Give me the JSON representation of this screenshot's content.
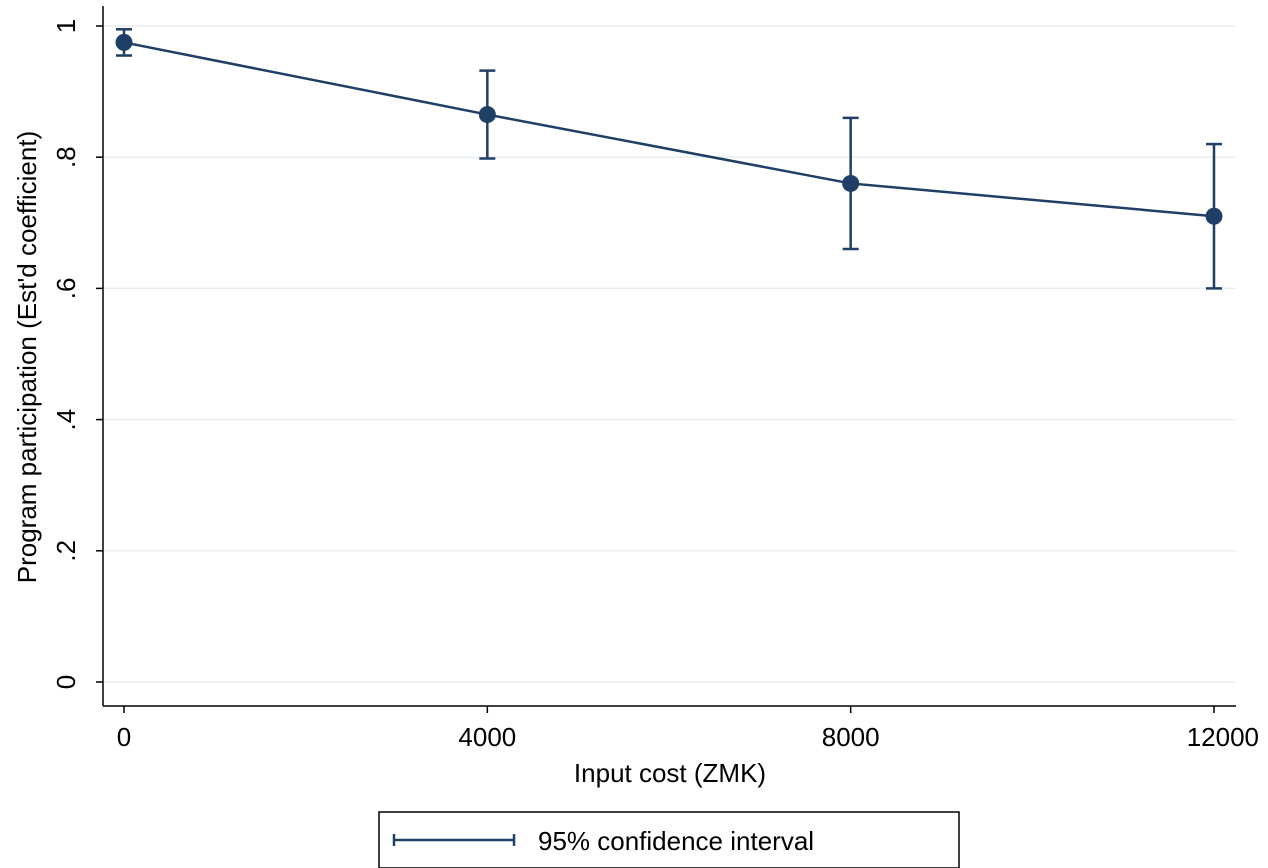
{
  "chart_data": {
    "type": "scatter",
    "xlabel": "Input cost (ZMK)",
    "ylabel": "Program participation (Est'd coefficient)",
    "xlim": [
      0,
      12000
    ],
    "ylim": [
      0,
      1
    ],
    "x_ticks": [
      {
        "value": 0,
        "label": "0"
      },
      {
        "value": 4000,
        "label": "4000"
      },
      {
        "value": 8000,
        "label": "8000"
      },
      {
        "value": 12000,
        "label": "12000"
      }
    ],
    "y_ticks": [
      {
        "value": 0,
        "label": "0"
      },
      {
        "value": 0.2,
        "label": ".2"
      },
      {
        "value": 0.4,
        "label": ".4"
      },
      {
        "value": 0.6,
        "label": ".6"
      },
      {
        "value": 0.8,
        "label": ".8"
      },
      {
        "value": 1,
        "label": "1"
      }
    ],
    "grid": "horizontal",
    "series": [
      {
        "color": "#1f3f66",
        "points": [
          {
            "x": 0,
            "y": 0.975,
            "ci_low": 0.955,
            "ci_high": 0.995
          },
          {
            "x": 4000,
            "y": 0.865,
            "ci_low": 0.798,
            "ci_high": 0.932
          },
          {
            "x": 8000,
            "y": 0.76,
            "ci_low": 0.66,
            "ci_high": 0.86
          },
          {
            "x": 12000,
            "y": 0.71,
            "ci_low": 0.6,
            "ci_high": 0.82
          }
        ]
      }
    ],
    "legend": {
      "position": "bottom-center",
      "entries": [
        {
          "label": "95% confidence interval"
        }
      ]
    }
  }
}
